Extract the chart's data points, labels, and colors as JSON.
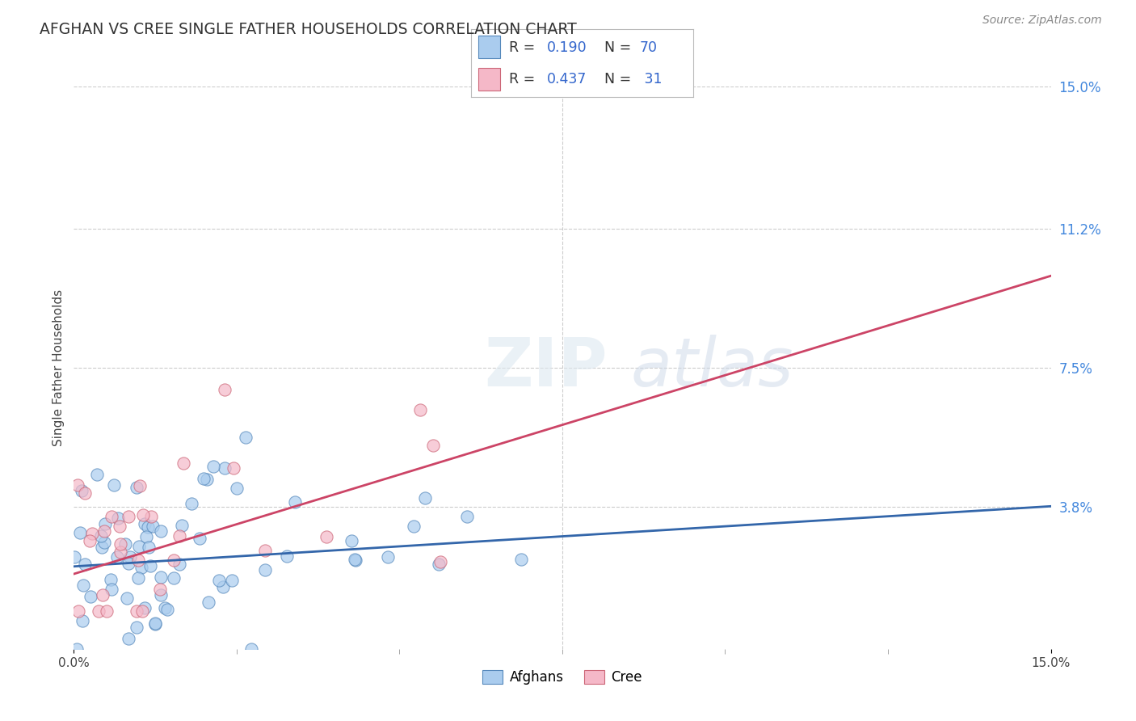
{
  "title": "AFGHAN VS CREE SINGLE FATHER HOUSEHOLDS CORRELATION CHART",
  "source": "Source: ZipAtlas.com",
  "ylabel": "Single Father Households",
  "xlim": [
    0,
    0.15
  ],
  "ylim": [
    0,
    0.15
  ],
  "ytick_labels_right": [
    "3.8%",
    "7.5%",
    "11.2%",
    "15.0%"
  ],
  "ytick_vals_right": [
    0.038,
    0.075,
    0.112,
    0.15
  ],
  "grid_color": "#cccccc",
  "background_color": "#ffffff",
  "afghans_color": "#aaccee",
  "afghans_edge_color": "#5588bb",
  "cree_color": "#f5b8c8",
  "cree_edge_color": "#cc6677",
  "afghans_line_color": "#3366aa",
  "cree_line_color": "#cc4466",
  "R_afghans": 0.19,
  "N_afghans": 70,
  "R_cree": 0.437,
  "N_cree": 31,
  "legend_text_color": "#3366cc",
  "legend_label_color": "#333333"
}
